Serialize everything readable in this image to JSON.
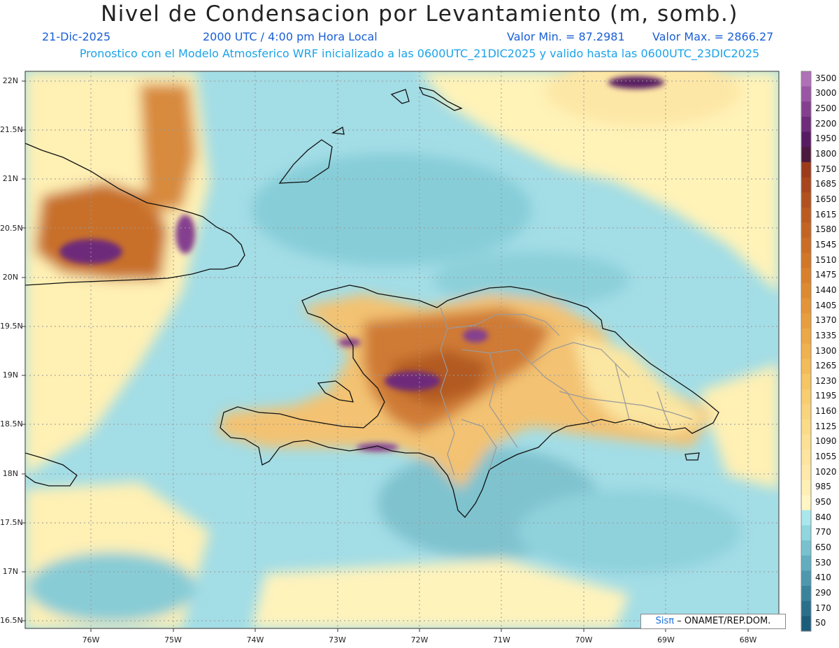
{
  "header": {
    "title": "Nivel de Condensacion por Levantamiento (m, somb.)",
    "date": "21-Dic-2025",
    "time": "2000 UTC / 4:00 pm Hora Local",
    "valmin": "Valor Min. = 87.2981",
    "valmax": "Valor Max. = 2866.27",
    "forecast": "Pronostico con el Modelo Atmosferico WRF inicializado a las 0600UTC_21DIC2025 y valido hasta las  0600UTC_23DIC2025"
  },
  "axes": {
    "lat_labels": [
      "22N",
      "21.5N",
      "21N",
      "20.5N",
      "20N",
      "19.5N",
      "19N",
      "18.5N",
      "18N",
      "17.5N",
      "17N",
      "16.5N"
    ],
    "lon_labels": [
      "76W",
      "75W",
      "74W",
      "73W",
      "72W",
      "71W",
      "70W",
      "69W",
      "68W"
    ]
  },
  "colorbar": {
    "labels": [
      "3500",
      "3000",
      "2500",
      "2200",
      "1950",
      "1800",
      "1750",
      "1685",
      "1650",
      "1615",
      "1580",
      "1545",
      "1510",
      "1475",
      "1440",
      "1405",
      "1370",
      "1335",
      "1300",
      "1265",
      "1230",
      "1195",
      "1160",
      "1125",
      "1090",
      "1055",
      "1020",
      "985",
      "950",
      "840",
      "770",
      "650",
      "530",
      "410",
      "290",
      "170",
      "50"
    ],
    "colors": [
      "#b070b8",
      "#9a56a4",
      "#84408f",
      "#6e2c7a",
      "#581a62",
      "#4c1a3e",
      "#9c3a1a",
      "#a8451c",
      "#b2501e",
      "#bc5b20",
      "#c46422",
      "#cb6d25",
      "#d27628",
      "#d8802c",
      "#de8a31",
      "#e39437",
      "#e89e3e",
      "#eca846",
      "#f0b24f",
      "#f3bc59",
      "#f6c564",
      "#f8cd70",
      "#fad47c",
      "#fbda88",
      "#fce094",
      "#fde5a0",
      "#fee9aa",
      "#fef0b4",
      "#fff6c4",
      "#a9e7ec",
      "#8fd6de",
      "#78c2cf",
      "#62adbf",
      "#4d98ae",
      "#3a839d",
      "#2a6f8c",
      "#1d5d7c"
    ]
  },
  "credit": {
    "sis": "Sisπ",
    "org": "– ONAMET/REP.DOM."
  }
}
